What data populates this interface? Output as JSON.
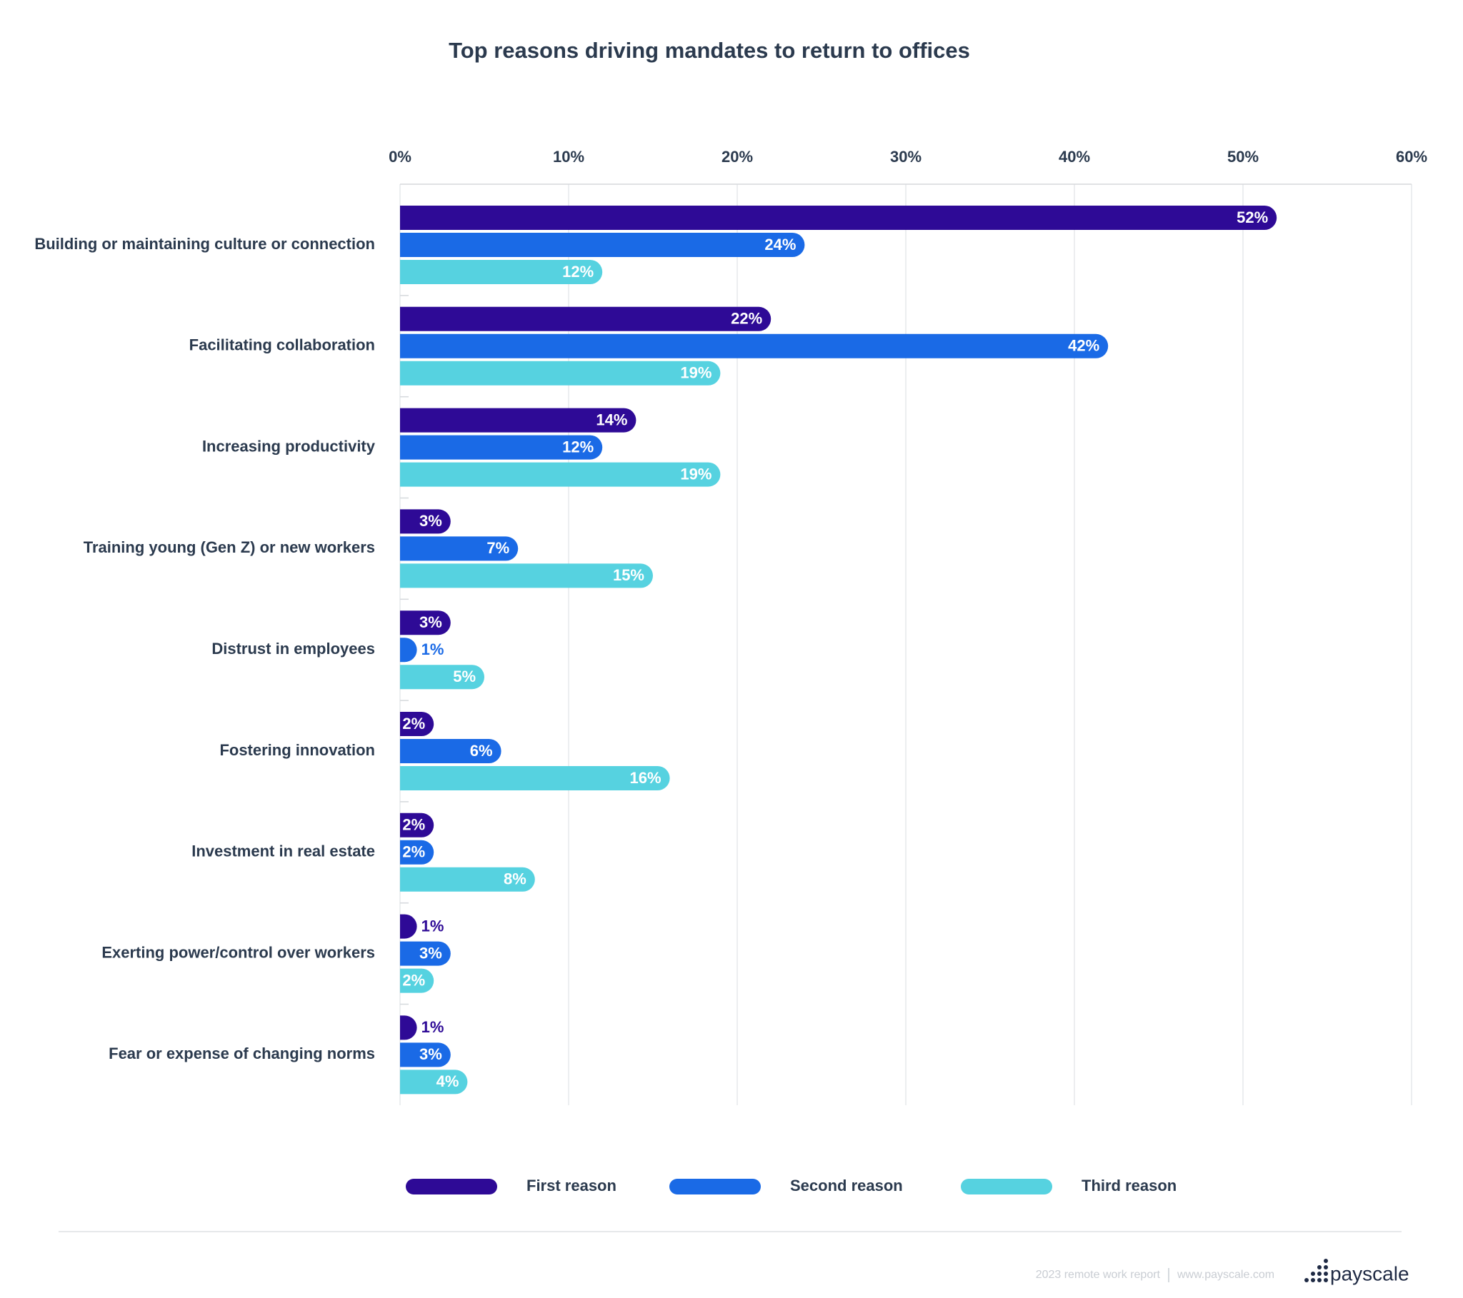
{
  "chart_data": {
    "type": "bar",
    "orientation": "horizontal",
    "title": "Top reasons driving mandates to return to offices",
    "categories": [
      "Building or maintaining culture or connection",
      "Facilitating collaboration",
      "Increasing productivity",
      "Training young (Gen Z) or new workers",
      "Distrust in employees",
      "Fostering innovation",
      "Investment in real estate",
      "Exerting power/control over workers",
      "Fear or expense of changing norms"
    ],
    "series": [
      {
        "name": "First reason",
        "color": "#2e0a96",
        "values": [
          52,
          22,
          14,
          3,
          3,
          2,
          2,
          1,
          1
        ],
        "value_labels": [
          "52%",
          "22%",
          "14%",
          "3%",
          "3%",
          "2%",
          "2%",
          "1%",
          "1%"
        ]
      },
      {
        "name": "Second reason",
        "color": "#1a6ae6",
        "values": [
          24,
          42,
          12,
          7,
          1,
          6,
          2,
          3,
          3
        ],
        "value_labels": [
          "24%",
          "42%",
          "12%",
          "7%",
          "1%",
          "6%",
          "2%",
          "3%",
          "3%"
        ]
      },
      {
        "name": "Third reason",
        "color": "#56d2e0",
        "values": [
          12,
          19,
          19,
          15,
          5,
          16,
          8,
          2,
          4
        ],
        "value_labels": [
          "12%",
          "19%",
          "19%",
          "15%",
          "5%",
          "16%",
          "8%",
          "2%",
          "4%"
        ]
      }
    ],
    "xlim": [
      0,
      60
    ],
    "xticks": [
      {
        "value": 0,
        "label": "0%"
      },
      {
        "value": 10,
        "label": "10%"
      },
      {
        "value": 20,
        "label": "20%"
      },
      {
        "value": 30,
        "label": "30%"
      },
      {
        "value": 40,
        "label": "40%"
      },
      {
        "value": 50,
        "label": "50%"
      },
      {
        "value": 60,
        "label": "60%"
      }
    ],
    "grid": true,
    "legend": "bottom"
  },
  "footer": {
    "report": "2023 remote work report",
    "url": "www.payscale.com",
    "brand": "payscale"
  }
}
